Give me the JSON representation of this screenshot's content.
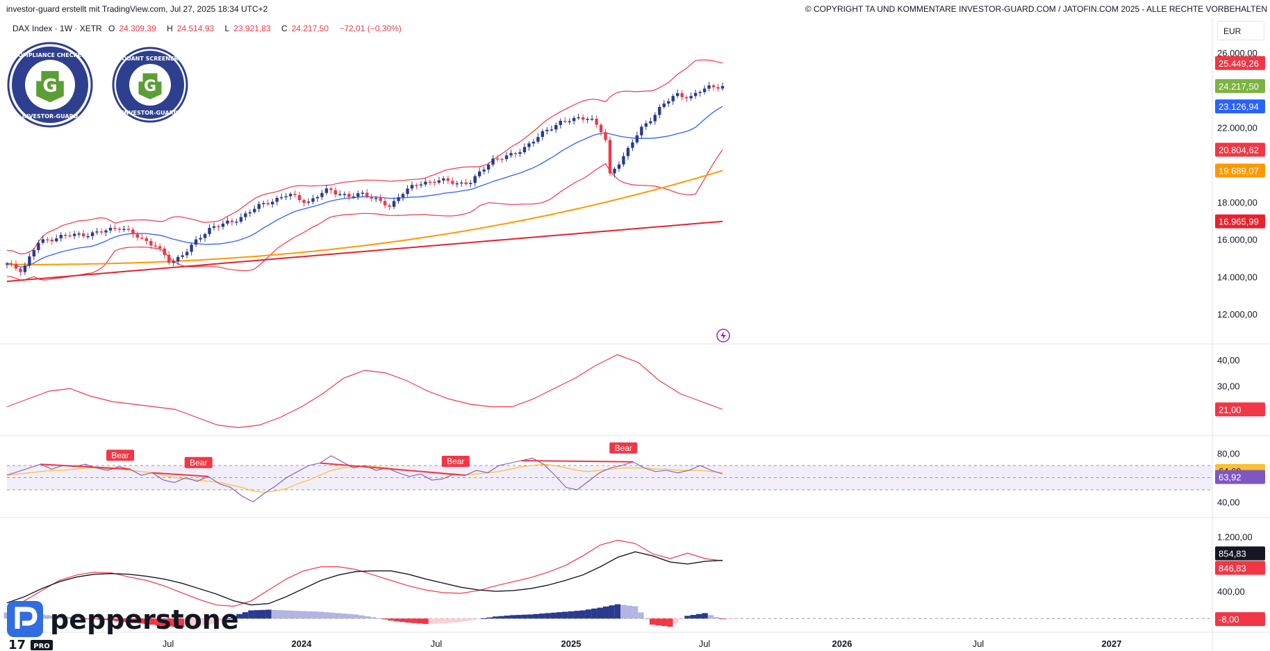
{
  "header": {
    "left_text": "investor-guard erstellt mit TradingView.com, Jul 27, 2025 18:34 UTC+2",
    "right_text": "© COPYRIGHT TA UND KOMMENTARE INVESTOR-GUARD.COM / JATOFIN.COM 2025 - ALLE RECHTE VORBEHALTEN"
  },
  "legend": {
    "symbol": "DAX Index · 1W · XETR",
    "o_label": "O",
    "o_value": "24.309,39",
    "h_label": "H",
    "h_value": "24.514,93",
    "l_label": "L",
    "l_value": "23.921,83",
    "c_label": "C",
    "c_value": "24.217,50",
    "change": "−72,01 (−0,30%)"
  },
  "currency": "EUR",
  "badges": [
    {
      "top": "COMPLIANCE CHECKED",
      "bottom": "INVESTOR-GUARD",
      "letter": "G"
    },
    {
      "top": "QUANT SCREENER",
      "bottom": "INVESTOR-GUARD",
      "letter": "G"
    }
  ],
  "brand": {
    "pepperstone": "pepperstone",
    "tv_logo": "17",
    "tv_pro": "PRO"
  },
  "colors": {
    "up": "#2a3a8f",
    "down": "#f23645",
    "bb": "#f23645",
    "sma20": "#2962ff",
    "ma50": "#ff9800",
    "ma200": "#e8212d",
    "rsi": "#7e57c2",
    "rsi_ma": "#fbc02d",
    "adx": "#f23645",
    "macd": "#131722",
    "signal": "#f23645"
  },
  "chart_data": [
    {
      "type": "candlestick",
      "title": "DAX Index · 1W · XETR",
      "xlabels": [
        "Jul",
        "2024",
        "Jul",
        "2025",
        "Jul",
        "2026",
        "Jul",
        "2027"
      ],
      "y_ticks": [
        "26.000,00",
        "22.000,00",
        "18.000,00",
        "16.000,00",
        "14.000,00",
        "12.000,00"
      ],
      "ylim": [
        10400,
        27600
      ],
      "close_path": [
        [
          0,
          14650
        ],
        [
          6,
          14350
        ],
        [
          12,
          15800
        ],
        [
          20,
          16150
        ],
        [
          28,
          16250
        ],
        [
          36,
          16350
        ],
        [
          44,
          16700
        ],
        [
          50,
          16200
        ],
        [
          58,
          15700
        ],
        [
          64,
          14700
        ],
        [
          72,
          15600
        ],
        [
          80,
          16700
        ],
        [
          88,
          16900
        ],
        [
          96,
          17600
        ],
        [
          104,
          18100
        ],
        [
          110,
          18400
        ],
        [
          118,
          18000
        ],
        [
          126,
          18700
        ],
        [
          134,
          18250
        ],
        [
          140,
          18500
        ],
        [
          146,
          18000
        ],
        [
          150,
          17700
        ],
        [
          154,
          18500
        ],
        [
          160,
          18900
        ],
        [
          168,
          19200
        ],
        [
          176,
          19000
        ],
        [
          182,
          19100
        ],
        [
          190,
          20300
        ],
        [
          198,
          20500
        ],
        [
          206,
          21300
        ],
        [
          216,
          22300
        ],
        [
          222,
          22400
        ],
        [
          228,
          22600
        ],
        [
          234,
          21500
        ],
        [
          236,
          19400
        ],
        [
          238,
          19900
        ],
        [
          242,
          20600
        ],
        [
          248,
          21900
        ],
        [
          256,
          23100
        ],
        [
          262,
          23800
        ],
        [
          268,
          23600
        ],
        [
          274,
          24200
        ],
        [
          280,
          24217
        ]
      ],
      "price_tags": [
        {
          "label": "25.449,26",
          "price": 25449.26,
          "color": "#f23645"
        },
        {
          "label": "24.217,50",
          "price": 24217.5,
          "color": "#7cb342"
        },
        {
          "label": "23.126,94",
          "price": 23126.94,
          "color": "#2962ff"
        },
        {
          "label": "20.804,62",
          "price": 20804.62,
          "color": "#f23645"
        },
        {
          "label": "19.689,07",
          "price": 19689.07,
          "color": "#ff9800"
        },
        {
          "label": "16.965,99",
          "price": 16965.99,
          "color": "#e8212d"
        }
      ],
      "ma200_end": 16965.99,
      "ma50_end": 19689.07,
      "bb_upper_end": 25449.26,
      "bb_basis_end": 23126.94,
      "bb_lower_end": 20804.62
    },
    {
      "type": "line",
      "title": "",
      "y_ticks": [
        "40,00",
        "30,00"
      ],
      "ylim": [
        12,
        44
      ],
      "series": [
        {
          "values": [
            22,
            25,
            28,
            29,
            26,
            24,
            23,
            22,
            21,
            18,
            15,
            14,
            15,
            18,
            22,
            27,
            33,
            36,
            35,
            32,
            28,
            25,
            23,
            22,
            22,
            25,
            29,
            33,
            38,
            42,
            39,
            32,
            27,
            24,
            21
          ],
          "last": "21,00"
        }
      ]
    },
    {
      "type": "line",
      "title": "",
      "y_ticks": [
        "80,00",
        "40,00"
      ],
      "ylim": [
        30,
        90
      ],
      "band": [
        50,
        70
      ],
      "series": [
        {
          "values": [
            62,
            65,
            68,
            71,
            67,
            70,
            69,
            71,
            68,
            66,
            69,
            67,
            62,
            64,
            58,
            56,
            60,
            57,
            61,
            55,
            52,
            45,
            40,
            47,
            53,
            60,
            65,
            70,
            72,
            78,
            73,
            68,
            70,
            66,
            68,
            64,
            61,
            63,
            58,
            59,
            63,
            62,
            66,
            64,
            70,
            72,
            74,
            76,
            71,
            62,
            52,
            50,
            57,
            64,
            68,
            70,
            73,
            68,
            65,
            66,
            64,
            66,
            70,
            66,
            63
          ],
          "last": "63,92"
        },
        {
          "values": [
            62,
            63,
            64,
            65,
            66,
            66,
            67,
            68,
            68,
            67,
            67,
            66,
            65,
            64,
            62,
            60,
            59,
            58,
            57,
            56,
            54,
            52,
            49,
            48,
            49,
            51,
            55,
            58,
            62,
            66,
            68,
            69,
            70,
            69,
            68,
            67,
            66,
            65,
            64,
            63,
            62,
            62,
            63,
            64,
            65,
            67,
            69,
            70,
            71,
            70,
            68,
            66,
            65,
            66,
            67,
            68,
            68,
            68,
            67,
            67,
            66,
            66,
            66,
            65,
            64
          ],
          "last": "64,69"
        }
      ],
      "bear_labels": [
        "Bear",
        "Bear",
        "Bear",
        "Bear"
      ]
    },
    {
      "type": "bar",
      "title": "",
      "y_ticks": [
        "1.200,00",
        "400,00"
      ],
      "ylim": [
        -150,
        1400
      ],
      "series": [
        {
          "values": [
            230,
            320,
            440,
            540,
            610,
            650,
            660,
            650,
            620,
            580,
            520,
            440,
            360,
            260,
            200,
            220,
            320,
            440,
            560,
            640,
            690,
            700,
            700,
            650,
            580,
            520,
            460,
            420,
            400,
            410,
            440,
            490,
            560,
            640,
            760,
            900,
            980,
            920,
            830,
            800,
            840,
            855
          ],
          "last": "854,83"
        },
        {
          "values": [
            150,
            260,
            410,
            560,
            640,
            680,
            670,
            610,
            560,
            480,
            380,
            280,
            200,
            180,
            260,
            420,
            580,
            700,
            760,
            760,
            720,
            640,
            560,
            480,
            420,
            380,
            370,
            410,
            480,
            540,
            600,
            680,
            780,
            920,
            1080,
            1150,
            1100,
            950,
            880,
            960,
            880,
            847
          ],
          "last": "846,83"
        },
        {
          "values": [
            90,
            100,
            60,
            30,
            20,
            -10,
            -30,
            -60,
            -80,
            -110,
            -130,
            -110,
            -70,
            40,
            120,
            130,
            120,
            110,
            100,
            80,
            60,
            20,
            -30,
            -60,
            -80,
            -70,
            -50,
            -10,
            30,
            50,
            60,
            80,
            100,
            120,
            160,
            210,
            180,
            -90,
            -120,
            40,
            80,
            -8
          ],
          "last": "-8,00"
        }
      ]
    }
  ]
}
